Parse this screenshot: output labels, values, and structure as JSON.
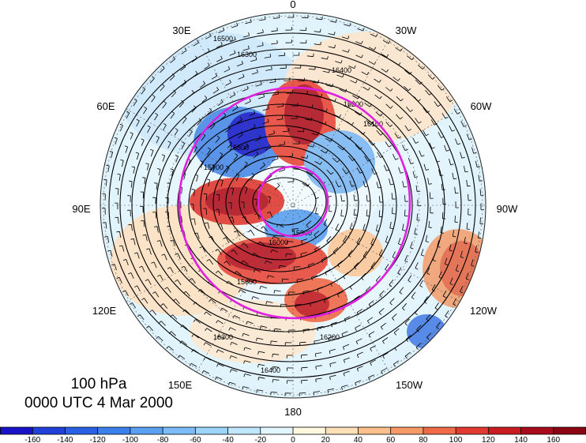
{
  "title": {
    "level": "100 hPa",
    "time": "0000 UTC 4 Mar 2000"
  },
  "map": {
    "projection": "north polar stereographic",
    "longitude_labels": [
      "0",
      "30W",
      "60W",
      "90W",
      "120W",
      "150W",
      "180",
      "150E",
      "120E",
      "90E",
      "60E",
      "30E"
    ],
    "contour_labels": [
      "16500",
      "16400",
      "16300",
      "16200",
      "16100",
      "16000",
      "15900",
      "15800",
      "15700",
      "15600",
      "16400",
      "16200",
      "16300"
    ],
    "colors": {
      "negative_strong": "#1a1ac8",
      "negative_light": "#cfeefc",
      "positive_light": "#fde0c4",
      "positive_strong": "#a0101e",
      "contour": "#000000",
      "circle": "#e020e0"
    }
  },
  "colorbar": {
    "tick_labels": [
      "-160",
      "-140",
      "-120",
      "-100",
      "-80",
      "-60",
      "-40",
      "-20",
      "0",
      "20",
      "40",
      "60",
      "80",
      "100",
      "120",
      "140",
      "160"
    ],
    "colors": [
      "#1a12c8",
      "#2040d8",
      "#2a60e4",
      "#3c80ee",
      "#5aa0f4",
      "#7cbcf8",
      "#9cd4fa",
      "#bfe6fc",
      "#e2f6fe",
      "#fff8e0",
      "#fde0b8",
      "#fbc08c",
      "#f89a68",
      "#f06a48",
      "#e23a30",
      "#c81c20",
      "#a80c1c",
      "#8a0414"
    ]
  }
}
